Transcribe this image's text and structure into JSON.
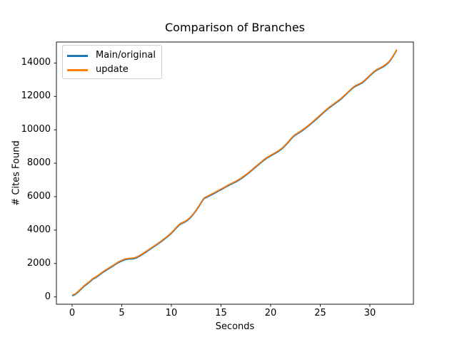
{
  "figure": {
    "background": "#ffffff"
  },
  "chart_data": {
    "type": "line",
    "title": "Comparison of Branches",
    "xlabel": "Seconds",
    "ylabel": "# Cites Found",
    "xlim": [
      -1.58,
      34.39
    ],
    "ylim": [
      -440,
      15255
    ],
    "xticks": [
      0,
      5,
      10,
      15,
      20,
      25,
      30
    ],
    "yticks": [
      0,
      2000,
      4000,
      6000,
      8000,
      10000,
      12000,
      14000
    ],
    "grid": false,
    "legend_position": "upper left",
    "series": [
      {
        "name": "Main/original",
        "color": "#1f77b4",
        "x": [
          0,
          0.3,
          0.6,
          0.9,
          1.2,
          1.5,
          1.8,
          2.1,
          2.4,
          2.7,
          3,
          3.3,
          3.6,
          3.9,
          4.2,
          4.5,
          4.8,
          5.1,
          5.4,
          5.7,
          6,
          6.3,
          6.6,
          6.9,
          7.2,
          7.5,
          7.8,
          8.1,
          8.4,
          8.7,
          9,
          9.3,
          9.6,
          9.9,
          10.2,
          10.5,
          10.8,
          11,
          11.3,
          11.6,
          11.9,
          12.2,
          12.5,
          12.8,
          13.1,
          13.3,
          13.6,
          13.9,
          14.2,
          14.5,
          14.8,
          15.1,
          15.4,
          15.7,
          16,
          16.3,
          16.6,
          16.9,
          17.2,
          17.5,
          17.8,
          18.1,
          18.4,
          18.7,
          19,
          19.3,
          19.6,
          19.9,
          20.2,
          20.5,
          20.8,
          21.1,
          21.4,
          21.7,
          22,
          22.3,
          22.6,
          22.9,
          23.2,
          23.5,
          23.8,
          24.1,
          24.4,
          24.7,
          25,
          25.3,
          25.6,
          25.9,
          26.2,
          26.5,
          26.8,
          27.1,
          27.4,
          27.7,
          28,
          28.3,
          28.6,
          28.9,
          29.2,
          29.5,
          29.8,
          30.1,
          30.4,
          30.7,
          31,
          31.3,
          31.6,
          31.9,
          32.2,
          32.45,
          32.7
        ],
        "y": [
          60,
          130,
          280,
          450,
          620,
          760,
          900,
          1060,
          1150,
          1280,
          1420,
          1540,
          1650,
          1760,
          1870,
          1990,
          2090,
          2170,
          2230,
          2260,
          2270,
          2290,
          2370,
          2470,
          2580,
          2700,
          2820,
          2940,
          3060,
          3180,
          3310,
          3450,
          3590,
          3740,
          3920,
          4120,
          4300,
          4380,
          4450,
          4560,
          4720,
          4920,
          5160,
          5430,
          5720,
          5880,
          5970,
          6060,
          6150,
          6250,
          6350,
          6440,
          6540,
          6640,
          6730,
          6820,
          6910,
          7020,
          7140,
          7270,
          7410,
          7560,
          7710,
          7860,
          8010,
          8160,
          8290,
          8400,
          8500,
          8600,
          8710,
          8840,
          9000,
          9190,
          9400,
          9590,
          9720,
          9830,
          9950,
          10080,
          10220,
          10370,
          10520,
          10680,
          10840,
          11000,
          11160,
          11310,
          11440,
          11570,
          11700,
          11840,
          12000,
          12170,
          12340,
          12500,
          12620,
          12700,
          12790,
          12940,
          13110,
          13280,
          13440,
          13570,
          13660,
          13750,
          13870,
          14030,
          14260,
          14500,
          14760
        ]
      },
      {
        "name": "update",
        "color": "#ff7f0e",
        "x": [
          0,
          0.3,
          0.6,
          0.9,
          1.2,
          1.5,
          1.8,
          2.1,
          2.4,
          2.7,
          3,
          3.3,
          3.6,
          3.9,
          4.2,
          4.5,
          4.8,
          5.1,
          5.4,
          5.7,
          6,
          6.3,
          6.6,
          6.9,
          7.2,
          7.5,
          7.8,
          8.1,
          8.4,
          8.7,
          9,
          9.3,
          9.6,
          9.9,
          10.2,
          10.5,
          10.8,
          11,
          11.3,
          11.6,
          11.9,
          12.2,
          12.5,
          12.8,
          13.1,
          13.3,
          13.6,
          13.9,
          14.2,
          14.5,
          14.8,
          15.1,
          15.4,
          15.7,
          16,
          16.3,
          16.6,
          16.9,
          17.2,
          17.5,
          17.8,
          18.1,
          18.4,
          18.7,
          19,
          19.3,
          19.6,
          19.9,
          20.2,
          20.5,
          20.8,
          21.1,
          21.4,
          21.7,
          22,
          22.3,
          22.6,
          22.9,
          23.2,
          23.5,
          23.8,
          24.1,
          24.4,
          24.7,
          25,
          25.3,
          25.6,
          25.9,
          26.2,
          26.5,
          26.8,
          27.1,
          27.4,
          27.7,
          28,
          28.3,
          28.6,
          28.9,
          29.2,
          29.5,
          29.8,
          30.1,
          30.4,
          30.7,
          31,
          31.3,
          31.6,
          31.9,
          32.2,
          32.45,
          32.7
        ],
        "y": [
          110,
          180,
          330,
          500,
          670,
          810,
          950,
          1110,
          1200,
          1330,
          1470,
          1590,
          1700,
          1810,
          1920,
          2040,
          2140,
          2220,
          2280,
          2310,
          2320,
          2340,
          2420,
          2520,
          2630,
          2750,
          2870,
          2990,
          3110,
          3230,
          3360,
          3500,
          3640,
          3790,
          3970,
          4170,
          4350,
          4430,
          4500,
          4610,
          4770,
          4970,
          5210,
          5480,
          5770,
          5930,
          6020,
          6110,
          6200,
          6300,
          6400,
          6490,
          6590,
          6690,
          6780,
          6870,
          6960,
          7070,
          7190,
          7320,
          7460,
          7610,
          7760,
          7910,
          8060,
          8210,
          8340,
          8450,
          8550,
          8650,
          8760,
          8890,
          9050,
          9240,
          9450,
          9640,
          9770,
          9880,
          10000,
          10130,
          10270,
          10420,
          10570,
          10730,
          10890,
          11050,
          11210,
          11360,
          11490,
          11620,
          11750,
          11890,
          12050,
          12220,
          12390,
          12550,
          12670,
          12750,
          12840,
          12990,
          13160,
          13330,
          13490,
          13620,
          13710,
          13800,
          13920,
          14080,
          14310,
          14550,
          14810
        ]
      }
    ]
  }
}
